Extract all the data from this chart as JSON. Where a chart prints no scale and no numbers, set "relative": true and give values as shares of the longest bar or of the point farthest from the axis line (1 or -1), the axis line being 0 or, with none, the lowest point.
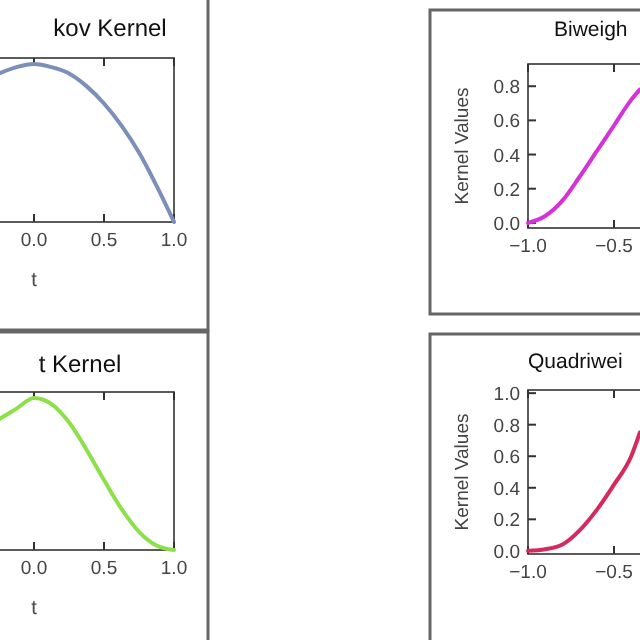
{
  "chart_data": [
    {
      "type": "line",
      "title": "kov Kernel",
      "xlabel": "t",
      "relative": true,
      "x": [
        -0.25,
        -0.125,
        0,
        0.125,
        0.25,
        0.375,
        0.5,
        0.625,
        0.75,
        0.875,
        1
      ],
      "xlim": [
        -1,
        1
      ],
      "xticks": [
        {
          "value": 0,
          "label": "0.0"
        },
        {
          "value": 0.5,
          "label": "0.5"
        },
        {
          "value": 1,
          "label": "1.0"
        }
      ],
      "series": [
        {
          "color": "#7b8fb8",
          "values": [
            0.94,
            0.98,
            1,
            0.98,
            0.94,
            0.86,
            0.75,
            0.61,
            0.44,
            0.23,
            0
          ]
        }
      ]
    },
    {
      "type": "line",
      "title": "Biweigh",
      "ylabel": "Kernel Values",
      "x": [
        -1,
        -0.9,
        -0.8,
        -0.7,
        -0.6,
        -0.5,
        -0.4,
        -0.35
      ],
      "xlim": [
        -1,
        1
      ],
      "xticks": [
        {
          "value": -1,
          "label": "−1.0"
        },
        {
          "value": -0.5,
          "label": "−0.5"
        }
      ],
      "ylim": [
        -0.03,
        0.93
      ],
      "yticks": [
        {
          "value": 0,
          "label": "0.0"
        },
        {
          "value": 0.2,
          "label": "0.2"
        },
        {
          "value": 0.4,
          "label": "0.4"
        },
        {
          "value": 0.6,
          "label": "0.6"
        },
        {
          "value": 0.8,
          "label": "0.8"
        }
      ],
      "series": [
        {
          "color": "#d633d6",
          "values": [
            0,
            0.04,
            0.13,
            0.27,
            0.42,
            0.57,
            0.72,
            0.78
          ]
        }
      ]
    },
    {
      "type": "line",
      "title": "t Kernel",
      "xlabel": "t",
      "relative": true,
      "x": [
        -0.25,
        -0.125,
        0,
        0.125,
        0.25,
        0.375,
        0.5,
        0.625,
        0.75,
        0.875,
        1
      ],
      "xlim": [
        -1,
        1
      ],
      "xticks": [
        {
          "value": 0,
          "label": "0.0"
        },
        {
          "value": 0.5,
          "label": "0.5"
        },
        {
          "value": 1,
          "label": "1.0"
        }
      ],
      "series": [
        {
          "color": "#8ee04a",
          "values": [
            0.86,
            0.93,
            1,
            0.96,
            0.84,
            0.66,
            0.46,
            0.27,
            0.12,
            0.03,
            0
          ]
        }
      ]
    },
    {
      "type": "line",
      "title": "Quadriwei",
      "ylabel": "Kernel Values",
      "x": [
        -1,
        -0.9,
        -0.8,
        -0.7,
        -0.6,
        -0.5,
        -0.4,
        -0.35
      ],
      "xlim": [
        -1,
        1
      ],
      "xticks": [
        {
          "value": -1,
          "label": "−1.0"
        },
        {
          "value": -0.5,
          "label": "−0.5"
        }
      ],
      "ylim": [
        -0.02,
        1.02
      ],
      "yticks": [
        {
          "value": 0,
          "label": "0.0"
        },
        {
          "value": 0.2,
          "label": "0.2"
        },
        {
          "value": 0.4,
          "label": "0.4"
        },
        {
          "value": 0.6,
          "label": "0.6"
        },
        {
          "value": 0.8,
          "label": "0.8"
        },
        {
          "value": 1,
          "label": "1.0"
        }
      ],
      "series": [
        {
          "color": "#d42a5e",
          "values": [
            0,
            0.01,
            0.04,
            0.13,
            0.26,
            0.42,
            0.6,
            0.75
          ]
        }
      ]
    }
  ]
}
